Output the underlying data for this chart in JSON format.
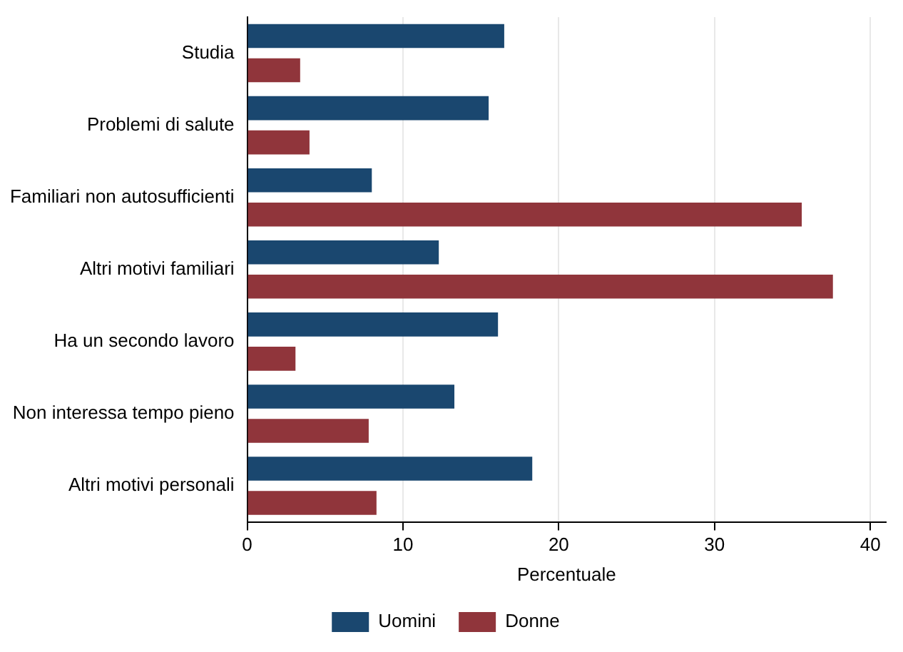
{
  "chart_data": {
    "type": "bar",
    "orientation": "horizontal",
    "xlabel": "Percentuale",
    "categories": [
      "Studia",
      "Problemi di salute",
      "Familiari non autosufficienti",
      "Altri motivi familiari",
      "Ha un secondo lavoro",
      "Non interessa tempo pieno",
      "Altri motivi personali"
    ],
    "series": [
      {
        "name": "Uomini",
        "color": "#1a476f",
        "values": [
          16.5,
          15.5,
          8.0,
          12.3,
          16.1,
          13.3,
          18.3
        ]
      },
      {
        "name": "Donne",
        "color": "#90353b",
        "values": [
          3.4,
          4.0,
          35.6,
          37.6,
          3.1,
          7.8,
          8.3
        ]
      }
    ],
    "xlim": [
      0,
      41
    ],
    "xticks": [
      0,
      10,
      20,
      30,
      40
    ],
    "grid": "x",
    "legend": "bottom"
  }
}
